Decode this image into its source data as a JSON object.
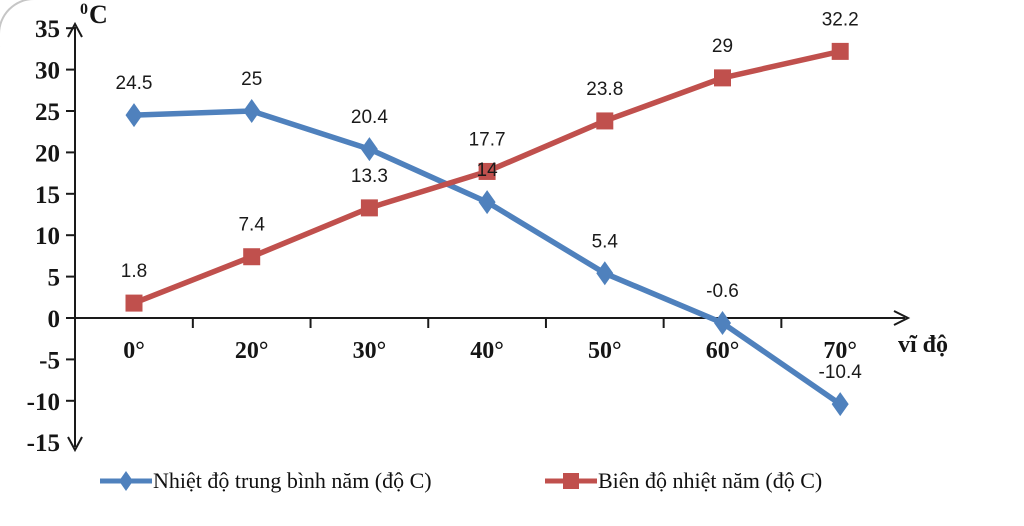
{
  "chart_data": {
    "type": "line",
    "categories": [
      "0°",
      "20°",
      "30°",
      "40°",
      "50°",
      "60°",
      "70°"
    ],
    "series": [
      {
        "name": "Nhiệt độ trung bình năm (độ C)",
        "color": "#4F81BD",
        "marker": "diamond",
        "values": [
          24.5,
          25,
          20.4,
          14,
          5.4,
          -0.6,
          -10.4
        ],
        "labels": [
          "24.5",
          "25",
          "20.4",
          "14",
          "5.4",
          "-0.6",
          "-10.4"
        ]
      },
      {
        "name": "Biên độ nhiệt năm (độ C)",
        "color": "#C0504D",
        "marker": "square",
        "values": [
          1.8,
          7.4,
          13.3,
          17.7,
          23.8,
          29,
          32.2
        ],
        "labels": [
          "1.8",
          "7.4",
          "13.3",
          "17.7",
          "23.8",
          "29",
          "32.2"
        ]
      }
    ],
    "title": "",
    "xlabel": "vĩ độ",
    "ylabel_sup": "0",
    "ylabel": "C",
    "ylim": [
      -15,
      35
    ],
    "ytick_step": 5,
    "yticks": [
      35,
      30,
      25,
      20,
      15,
      10,
      5,
      0,
      -5,
      -10,
      -15
    ],
    "grid": false,
    "legend_position": "bottom",
    "axis_color": "#1a1a1a"
  }
}
